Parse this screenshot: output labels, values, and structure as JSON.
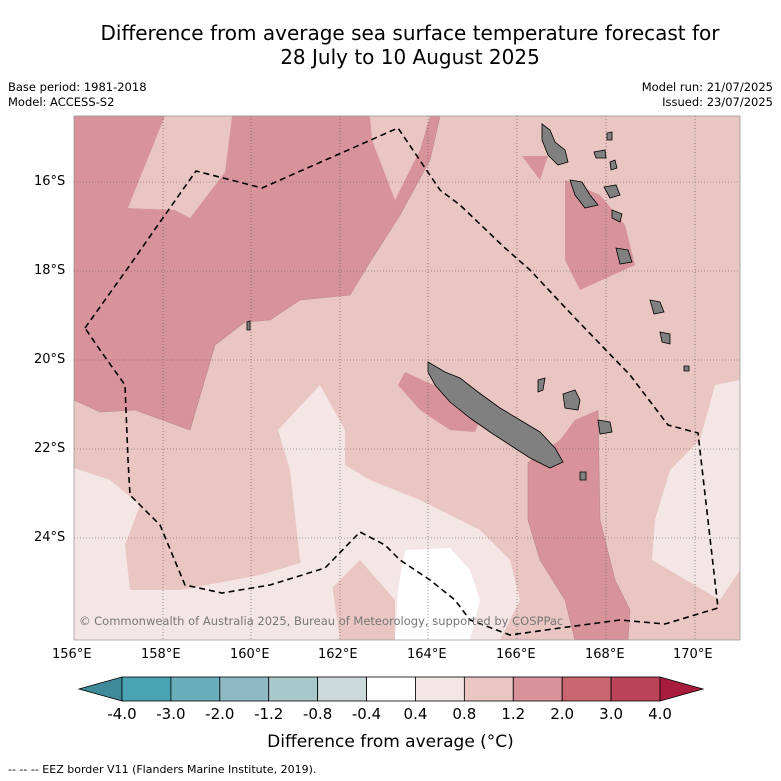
{
  "header": {
    "title_line1": "Difference from average sea surface temperature forecast for",
    "title_line2": "28 July to 10 August 2025",
    "base_period": "Base period: 1981-2018",
    "model": "Model: ACCESS-S2",
    "model_run": "Model run: 21/07/2025",
    "issued": "Issued: 23/07/2025"
  },
  "map": {
    "copyright": "© Commonwealth of Australia 2025, Bureau of Meteorology, supported by COSPPac",
    "lon_labels": [
      "156°E",
      "158°E",
      "160°E",
      "162°E",
      "164°E",
      "166°E",
      "168°E",
      "170°E"
    ],
    "lat_labels": [
      "16°S",
      "18°S",
      "20°S",
      "22°S",
      "24°S"
    ],
    "colors": {
      "band_0.4_0.8": "#f4e6e5",
      "band_0.8_1.2": "#e9c6c1",
      "band_1.2_2.0": "#d8929a",
      "land": "#808080"
    }
  },
  "colorbar": {
    "tick_labels": [
      "-4.0",
      "-3.0",
      "-2.0",
      "-1.2",
      "-0.8",
      "-0.4",
      "0.4",
      "0.8",
      "1.2",
      "2.0",
      "3.0",
      "4.0"
    ],
    "colors": [
      "#3f8a98",
      "#4aa3b2",
      "#6aaebc",
      "#8ebac4",
      "#a9c8cc",
      "#ccd9db",
      "#ffffff",
      "#f4e6e5",
      "#e9c6c1",
      "#d8929a",
      "#c96670",
      "#bd4458",
      "#a91d3c"
    ],
    "label": "Difference from average (°C)"
  },
  "legend": {
    "eez": "-- -- -- EEZ border V11 (Flanders Marine Institute, 2019)."
  }
}
